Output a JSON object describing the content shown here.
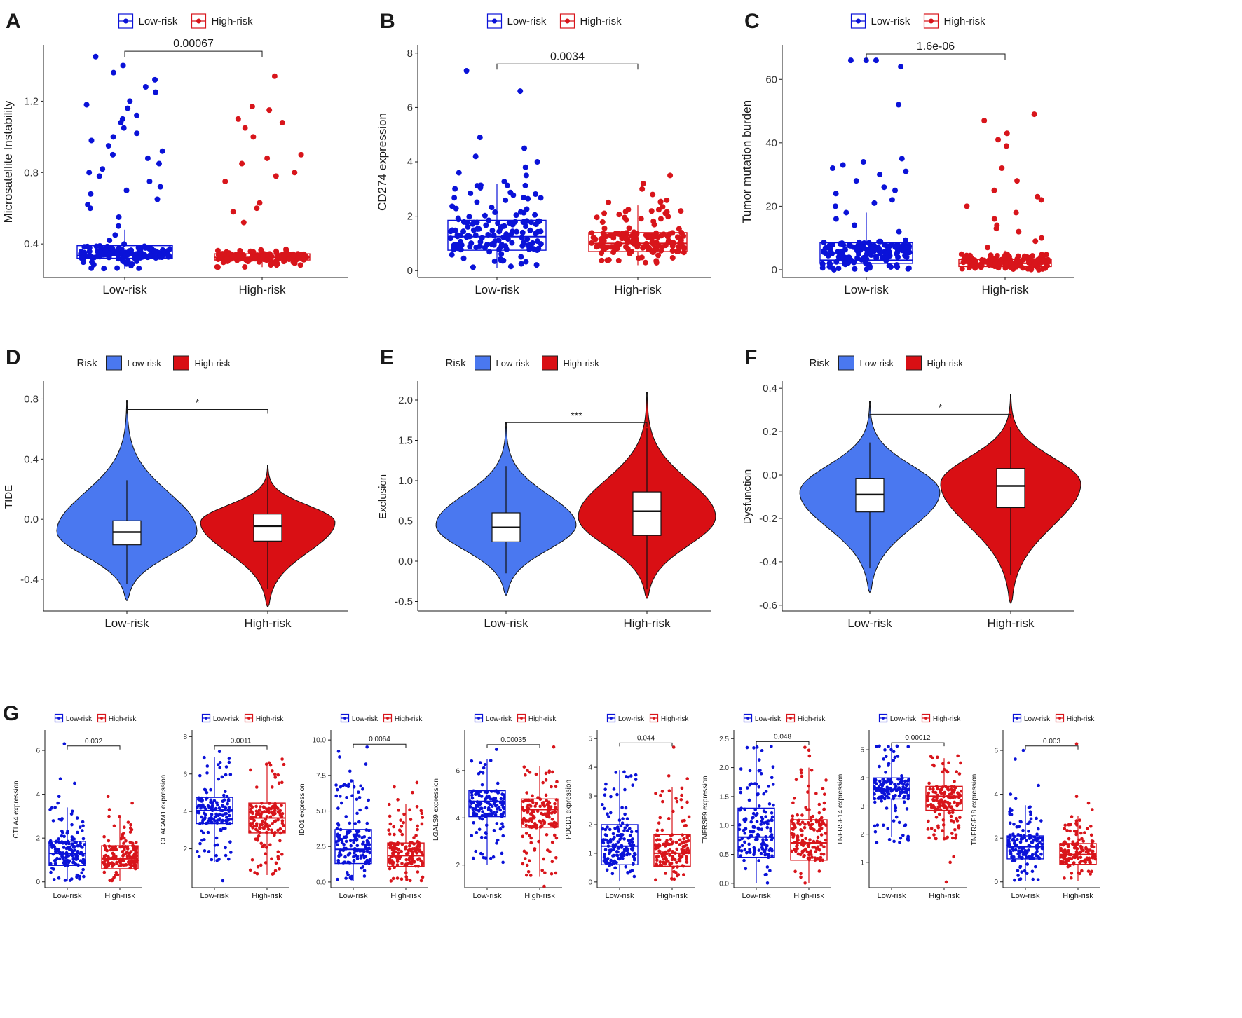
{
  "colors": {
    "low_point": "#0a12d8",
    "high_point": "#d8151b",
    "low_fill": "#4a78f0",
    "high_fill": "#d90f14",
    "axis": "#1a1a1a",
    "text": "#1a1a1a"
  },
  "chart_data": [
    {
      "panel": "A",
      "type": "box-jitter",
      "legend": [
        "Low-risk",
        "High-risk"
      ],
      "ylabel": "Microsatellite Instability",
      "categories": [
        "Low-risk",
        "High-risk"
      ],
      "ylim": [
        0.22,
        1.5
      ],
      "yticks": [
        0.4,
        0.8,
        1.2
      ],
      "ytick_labels": [
        "0.4",
        "0.8",
        "1.2"
      ],
      "pvalue": "0.00067",
      "sig_y": 1.48,
      "boxes": [
        {
          "q1": 0.32,
          "med": 0.335,
          "q3": 0.39,
          "wlo": 0.26,
          "whi": 0.48
        },
        {
          "q1": 0.31,
          "med": 0.325,
          "q3": 0.345,
          "wlo": 0.27,
          "whi": 0.37
        }
      ],
      "points": [
        {
          "n": 130,
          "lo": 0.26,
          "hi": 0.4,
          "ext": [
            0.42,
            0.45,
            0.5,
            0.55,
            0.6,
            0.62,
            0.65,
            0.68,
            0.7,
            0.72,
            0.75,
            0.78,
            0.8,
            0.82,
            0.85,
            0.88,
            0.9,
            0.92,
            0.95,
            0.98,
            1.0,
            1.02,
            1.05,
            1.08,
            1.1,
            1.12,
            1.16,
            1.18,
            1.2,
            1.25,
            1.28,
            1.32,
            1.36,
            1.4,
            1.45
          ]
        },
        {
          "n": 130,
          "lo": 0.27,
          "hi": 0.37,
          "ext": [
            0.52,
            0.58,
            0.6,
            0.63,
            0.75,
            0.78,
            0.8,
            0.85,
            0.88,
            0.9,
            1.0,
            1.05,
            1.08,
            1.1,
            1.15,
            1.17,
            1.34
          ]
        }
      ]
    },
    {
      "panel": "B",
      "type": "box-jitter",
      "legend": [
        "Low-risk",
        "High-risk"
      ],
      "ylabel": "CD274 expression",
      "categories": [
        "Low-risk",
        "High-risk"
      ],
      "ylim": [
        -0.2,
        8.2
      ],
      "yticks": [
        0,
        2,
        4,
        6,
        8
      ],
      "ytick_labels": [
        "0",
        "2",
        "4",
        "6",
        "8"
      ],
      "pvalue": "0.0034",
      "sig_y": 7.6,
      "boxes": [
        {
          "q1": 0.75,
          "med": 1.25,
          "q3": 1.85,
          "wlo": 0.1,
          "whi": 3.2
        },
        {
          "q1": 0.7,
          "med": 1.0,
          "q3": 1.4,
          "wlo": 0.2,
          "whi": 2.4
        }
      ],
      "points": [
        {
          "n": 150,
          "lo": 0.1,
          "hi": 3.4,
          "ext": [
            3.5,
            3.6,
            3.8,
            4.0,
            4.2,
            4.5,
            4.9,
            6.6,
            7.35
          ]
        },
        {
          "n": 150,
          "lo": 0.2,
          "hi": 2.6,
          "ext": [
            2.8,
            3.0,
            3.2,
            3.5
          ]
        }
      ]
    },
    {
      "panel": "C",
      "type": "box-jitter",
      "legend": [
        "Low-risk",
        "High-risk"
      ],
      "ylabel": "Tumor mutation burden",
      "categories": [
        "Low-risk",
        "High-risk"
      ],
      "ylim": [
        -2,
        70
      ],
      "yticks": [
        0,
        20,
        40,
        60
      ],
      "ytick_labels": [
        "0",
        "20",
        "40",
        "60"
      ],
      "pvalue": "1.6e-06",
      "sig_y": 68,
      "boxes": [
        {
          "q1": 2,
          "med": 3,
          "q3": 8.5,
          "wlo": 0,
          "whi": 18
        },
        {
          "q1": 1,
          "med": 2,
          "q3": 3.2,
          "wlo": 0,
          "whi": 6
        }
      ],
      "points": [
        {
          "n": 140,
          "lo": 0,
          "hi": 10,
          "ext": [
            12,
            14,
            16,
            18,
            20,
            21,
            22,
            24,
            25,
            26,
            28,
            30,
            31,
            32,
            33,
            34,
            35,
            52,
            64,
            66,
            66,
            66
          ]
        },
        {
          "n": 140,
          "lo": 0,
          "hi": 5,
          "ext": [
            7,
            9,
            10,
            12,
            13,
            14,
            16,
            18,
            20,
            22,
            23,
            25,
            28,
            32,
            39,
            41,
            43,
            47,
            49
          ]
        }
      ]
    },
    {
      "panel": "D",
      "type": "violin",
      "legend_title": "Risk",
      "legend": [
        "Low-risk",
        "High-risk"
      ],
      "ylabel": "TIDE",
      "categories": [
        "Low-risk",
        "High-risk"
      ],
      "ylim": [
        -0.6,
        0.9
      ],
      "yticks": [
        -0.4,
        0.0,
        0.4,
        0.8
      ],
      "ytick_labels": [
        "-0.4",
        "0.0",
        "0.4",
        "0.8"
      ],
      "sig_label": "*",
      "sig_y": 0.73,
      "violins": [
        {
          "min": -0.54,
          "max": 0.79,
          "peak": -0.08,
          "width": 1.0,
          "q1": -0.17,
          "med": -0.085,
          "q3": -0.01,
          "wlo": -0.43,
          "whi": 0.26
        },
        {
          "min": -0.58,
          "max": 0.36,
          "peak": -0.02,
          "width": 0.96,
          "q1": -0.145,
          "med": -0.045,
          "q3": 0.035,
          "wlo": -0.46,
          "whi": 0.28
        }
      ]
    },
    {
      "panel": "E",
      "type": "violin",
      "legend_title": "Risk",
      "legend": [
        "Low-risk",
        "High-risk"
      ],
      "ylabel": "Exclusion",
      "categories": [
        "Low-risk",
        "High-risk"
      ],
      "ylim": [
        -0.6,
        2.2
      ],
      "yticks": [
        -0.5,
        0.0,
        0.5,
        1.0,
        1.5,
        2.0
      ],
      "ytick_labels": [
        "-0.5",
        "0.0",
        "0.5",
        "1.0",
        "1.5",
        "2.0"
      ],
      "sig_label": "***",
      "sig_y": 1.72,
      "violins": [
        {
          "min": -0.42,
          "max": 1.72,
          "peak": 0.45,
          "width": 1.0,
          "q1": 0.24,
          "med": 0.42,
          "q3": 0.6,
          "wlo": -0.15,
          "whi": 1.18
        },
        {
          "min": -0.46,
          "max": 2.1,
          "peak": 0.55,
          "width": 0.98,
          "q1": 0.32,
          "med": 0.62,
          "q3": 0.86,
          "wlo": -0.35,
          "whi": 1.65
        }
      ]
    },
    {
      "panel": "F",
      "type": "violin",
      "legend_title": "Risk",
      "legend": [
        "Low-risk",
        "High-risk"
      ],
      "ylabel": "Dysfunction",
      "categories": [
        "Low-risk",
        "High-risk"
      ],
      "ylim": [
        -0.62,
        0.42
      ],
      "yticks": [
        -0.6,
        -0.4,
        -0.2,
        0.0,
        0.2,
        0.4
      ],
      "ytick_labels": [
        "-0.6",
        "-0.4",
        "-0.2",
        "0.0",
        "0.2",
        "0.4"
      ],
      "sig_label": "*",
      "sig_y": 0.28,
      "violins": [
        {
          "min": -0.54,
          "max": 0.34,
          "peak": -0.08,
          "width": 1.0,
          "q1": -0.17,
          "med": -0.09,
          "q3": -0.015,
          "wlo": -0.43,
          "whi": 0.15
        },
        {
          "min": -0.59,
          "max": 0.37,
          "peak": -0.04,
          "width": 1.0,
          "q1": -0.15,
          "med": -0.05,
          "q3": 0.03,
          "wlo": -0.46,
          "whi": 0.22
        }
      ]
    },
    {
      "panel": "G",
      "type": "box-jitter",
      "small": true,
      "legend": [
        "Low-risk",
        "High-risk"
      ],
      "ylabel": "CTLA4 expression",
      "categories": [
        "Low-risk",
        "High-risk"
      ],
      "ylim": [
        -0.2,
        6.8
      ],
      "yticks": [
        0,
        2,
        4,
        6
      ],
      "ytick_labels": [
        "0",
        "2",
        "4",
        "6"
      ],
      "pvalue": "0.032",
      "sig_y": 6.2,
      "boxes": [
        {
          "q1": 0.75,
          "med": 1.3,
          "q3": 1.85,
          "wlo": 0.05,
          "whi": 3.4
        },
        {
          "q1": 0.6,
          "med": 1.05,
          "q3": 1.65,
          "wlo": 0.05,
          "whi": 3.0
        }
      ],
      "points": [
        {
          "n": 150,
          "lo": 0.05,
          "hi": 3.4,
          "ext": [
            3.6,
            3.9,
            4.5,
            4.7,
            6.3
          ]
        },
        {
          "n": 150,
          "lo": 0.05,
          "hi": 3.0,
          "ext": [
            3.3,
            3.6,
            3.9
          ]
        }
      ]
    },
    {
      "panel": "",
      "type": "box-jitter",
      "small": true,
      "legend": [
        "Low-risk",
        "High-risk"
      ],
      "ylabel": "CEACAM1 expression",
      "categories": [
        "Low-risk",
        "High-risk"
      ],
      "ylim": [
        0,
        8.2
      ],
      "yticks": [
        2,
        4,
        6,
        8
      ],
      "ytick_labels": [
        "2",
        "4",
        "6",
        "8"
      ],
      "pvalue": "0.0011",
      "sig_y": 7.5,
      "boxes": [
        {
          "q1": 3.35,
          "med": 4.05,
          "q3": 4.75,
          "wlo": 1.3,
          "whi": 6.9
        },
        {
          "q1": 2.85,
          "med": 3.65,
          "q3": 4.45,
          "wlo": 0.6,
          "whi": 6.6
        }
      ],
      "points": [
        {
          "n": 150,
          "lo": 1.3,
          "hi": 6.9,
          "ext": [
            0.3,
            7.2
          ]
        },
        {
          "n": 150,
          "lo": 0.6,
          "hi": 6.8,
          "ext": []
        }
      ]
    },
    {
      "panel": "",
      "type": "box-jitter",
      "small": true,
      "legend": [
        "Low-risk",
        "High-risk"
      ],
      "ylabel": "IDO1 expression",
      "categories": [
        "Low-risk",
        "High-risk"
      ],
      "ylim": [
        -0.3,
        10.5
      ],
      "yticks": [
        0.0,
        2.5,
        5.0,
        7.5,
        10.0
      ],
      "ytick_labels": [
        "0.0",
        "2.5",
        "5.0",
        "7.5",
        "10.0"
      ],
      "pvalue": "0.0064",
      "sig_y": 9.7,
      "boxes": [
        {
          "q1": 1.3,
          "med": 2.3,
          "q3": 3.7,
          "wlo": 0.05,
          "whi": 7.2
        },
        {
          "q1": 1.1,
          "med": 1.85,
          "q3": 2.75,
          "wlo": 0.05,
          "whi": 5.5
        }
      ],
      "points": [
        {
          "n": 150,
          "lo": 0.05,
          "hi": 7.2,
          "ext": [
            7.8,
            8.3,
            8.8,
            9.2,
            9.5
          ]
        },
        {
          "n": 150,
          "lo": 0.05,
          "hi": 5.5,
          "ext": [
            5.8,
            6.3,
            6.7,
            7.0
          ]
        }
      ]
    },
    {
      "panel": "",
      "type": "box-jitter",
      "small": true,
      "legend": [
        "Low-risk",
        "High-risk"
      ],
      "ylabel": "LGALS9 expression",
      "categories": [
        "Low-risk",
        "High-risk"
      ],
      "ylim": [
        1.1,
        7.6
      ],
      "yticks": [
        2,
        4,
        6
      ],
      "ytick_labels": [
        "2",
        "4",
        "6"
      ],
      "pvalue": "0.00035",
      "sig_y": 7.1,
      "boxes": [
        {
          "q1": 4.05,
          "med": 4.7,
          "q3": 5.15,
          "wlo": 2.0,
          "whi": 6.5
        },
        {
          "q1": 3.6,
          "med": 4.35,
          "q3": 4.8,
          "wlo": 1.5,
          "whi": 6.2
        }
      ],
      "points": [
        {
          "n": 150,
          "lo": 2.0,
          "hi": 6.5,
          "ext": [
            6.9
          ]
        },
        {
          "n": 150,
          "lo": 1.5,
          "hi": 6.2,
          "ext": [
            1.1,
            7.0
          ]
        }
      ]
    },
    {
      "panel": "",
      "type": "box-jitter",
      "small": true,
      "legend": [
        "Low-risk",
        "High-risk"
      ],
      "ylabel": "PDCD1 expression",
      "categories": [
        "Low-risk",
        "High-risk"
      ],
      "ylim": [
        -0.15,
        5.2
      ],
      "yticks": [
        0,
        1,
        2,
        3,
        4,
        5
      ],
      "ytick_labels": [
        "0",
        "1",
        "2",
        "3",
        "4",
        "5"
      ],
      "pvalue": "0.044",
      "sig_y": 4.85,
      "boxes": [
        {
          "q1": 0.6,
          "med": 1.25,
          "q3": 2.0,
          "wlo": 0.02,
          "whi": 3.9
        },
        {
          "q1": 0.55,
          "med": 1.0,
          "q3": 1.65,
          "wlo": 0.02,
          "whi": 3.3
        }
      ],
      "points": [
        {
          "n": 150,
          "lo": 0.02,
          "hi": 3.9,
          "ext": []
        },
        {
          "n": 150,
          "lo": 0.02,
          "hi": 3.3,
          "ext": [
            3.6,
            3.7,
            4.7
          ]
        }
      ]
    },
    {
      "panel": "",
      "type": "box-jitter",
      "small": true,
      "legend": [
        "Low-risk",
        "High-risk"
      ],
      "ylabel": "TNFRSF9 expression",
      "categories": [
        "Low-risk",
        "High-risk"
      ],
      "ylim": [
        -0.05,
        2.6
      ],
      "yticks": [
        0.0,
        0.5,
        1.0,
        1.5,
        2.0,
        2.5
      ],
      "ytick_labels": [
        "0.0",
        "0.5",
        "1.0",
        "1.5",
        "2.0",
        "2.5"
      ],
      "pvalue": "0.048",
      "sig_y": 2.45,
      "boxes": [
        {
          "q1": 0.45,
          "med": 0.8,
          "q3": 1.3,
          "wlo": 0.0,
          "whi": 2.4
        },
        {
          "q1": 0.4,
          "med": 0.7,
          "q3": 1.1,
          "wlo": 0.0,
          "whi": 2.0
        }
      ],
      "points": [
        {
          "n": 150,
          "lo": 0.0,
          "hi": 2.4,
          "ext": []
        },
        {
          "n": 150,
          "lo": 0.0,
          "hi": 2.0,
          "ext": [
            2.2,
            2.3,
            2.35
          ]
        }
      ]
    },
    {
      "panel": "",
      "type": "box-jitter",
      "small": true,
      "legend": [
        "Low-risk",
        "High-risk"
      ],
      "ylabel": "TNFRSF14 expression",
      "categories": [
        "Low-risk",
        "High-risk"
      ],
      "ylim": [
        0.15,
        5.6
      ],
      "yticks": [
        1,
        2,
        3,
        4,
        5
      ],
      "ytick_labels": [
        "1",
        "2",
        "3",
        "4",
        "5"
      ],
      "pvalue": "0.00012",
      "sig_y": 5.25,
      "boxes": [
        {
          "q1": 3.25,
          "med": 3.6,
          "q3": 4.0,
          "wlo": 1.9,
          "whi": 5.2
        },
        {
          "q1": 2.85,
          "med": 3.35,
          "q3": 3.7,
          "wlo": 1.8,
          "whi": 4.7
        }
      ],
      "points": [
        {
          "n": 150,
          "lo": 1.7,
          "hi": 5.2,
          "ext": []
        },
        {
          "n": 150,
          "lo": 1.8,
          "hi": 4.8,
          "ext": [
            1.0,
            1.2,
            0.3
          ]
        }
      ]
    },
    {
      "panel": "",
      "type": "box-jitter",
      "small": true,
      "legend": [
        "Low-risk",
        "High-risk"
      ],
      "ylabel": "TNFRSF18 expression",
      "categories": [
        "Low-risk",
        "High-risk"
      ],
      "ylim": [
        -0.2,
        6.8
      ],
      "yticks": [
        0,
        2,
        4,
        6
      ],
      "ytick_labels": [
        "0",
        "2",
        "4",
        "6"
      ],
      "pvalue": "0.003",
      "sig_y": 6.2,
      "boxes": [
        {
          "q1": 1.05,
          "med": 1.6,
          "q3": 2.1,
          "wlo": 0.05,
          "whi": 3.5
        },
        {
          "q1": 0.8,
          "med": 1.25,
          "q3": 1.75,
          "wlo": 0.05,
          "whi": 3.0
        }
      ],
      "points": [
        {
          "n": 150,
          "lo": 0.05,
          "hi": 3.5,
          "ext": [
            3.8,
            4.0,
            4.4,
            5.6,
            6.0
          ]
        },
        {
          "n": 150,
          "lo": 0.05,
          "hi": 3.0,
          "ext": [
            3.3,
            3.6,
            3.9,
            6.3
          ]
        }
      ]
    }
  ]
}
